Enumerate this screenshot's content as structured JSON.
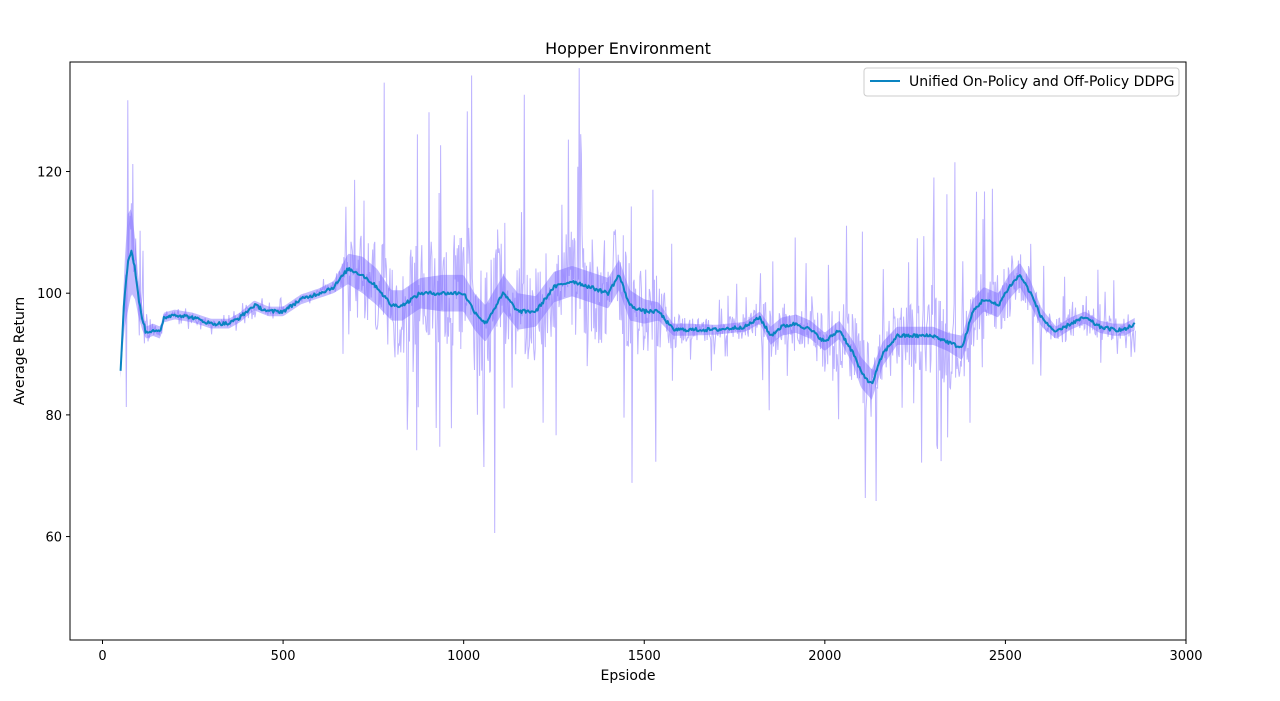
{
  "chart_data": {
    "type": "line",
    "title": "Hopper Environment",
    "xlabel": "Epsiode",
    "ylabel": "Average Return",
    "xlim": [
      -90,
      3000
    ],
    "ylim": [
      43,
      138
    ],
    "x_ticks": [
      0,
      500,
      1000,
      1500,
      2000,
      2500,
      3000
    ],
    "y_ticks": [
      60,
      80,
      100,
      120
    ],
    "grid": false,
    "legend_position": "upper right",
    "raw_color": "#7b68ff",
    "smoothed_color": "#0a84c1",
    "series": [
      {
        "name": "Unified On-Policy and Off-Policy DDPG",
        "x": [
          50,
          60,
          70,
          80,
          90,
          100,
          110,
          120,
          140,
          160,
          170,
          200,
          250,
          300,
          350,
          380,
          420,
          460,
          500,
          550,
          600,
          640,
          680,
          720,
          760,
          800,
          830,
          880,
          940,
          1000,
          1030,
          1060,
          1090,
          1110,
          1150,
          1200,
          1250,
          1300,
          1350,
          1400,
          1430,
          1460,
          1500,
          1540,
          1580,
          1620,
          1700,
          1780,
          1820,
          1850,
          1880,
          1920,
          1960,
          2000,
          2040,
          2080,
          2100,
          2130,
          2160,
          2200,
          2250,
          2300,
          2340,
          2380,
          2410,
          2440,
          2480,
          2510,
          2540,
          2570,
          2600,
          2640,
          2680,
          2720,
          2760,
          2800,
          2830,
          2860
        ],
        "smoothed": [
          87,
          99,
          105,
          107,
          104,
          99,
          96,
          93.5,
          94,
          93.5,
          96,
          96.5,
          96,
          95,
          95,
          96,
          98,
          97,
          97,
          99,
          100,
          101,
          104,
          103,
          101,
          98,
          98,
          100,
          100,
          100,
          97,
          95,
          98,
          100,
          97,
          97,
          101,
          102,
          101,
          100,
          103,
          98,
          97,
          97,
          94,
          94,
          94,
          94.5,
          96,
          93,
          94.5,
          95,
          94,
          92,
          94,
          90,
          87,
          85,
          90,
          93,
          93,
          93,
          92,
          91,
          97,
          99,
          98,
          101,
          103,
          100,
          96,
          93.5,
          95,
          96,
          94.5,
          94,
          94,
          95
        ],
        "envelope_halfwidth": [
          1,
          5,
          8,
          7,
          5,
          3,
          2,
          1,
          1,
          1,
          0.8,
          0.8,
          0.8,
          0.8,
          0.8,
          0.8,
          0.8,
          0.8,
          0.8,
          0.8,
          0.8,
          1,
          2.5,
          3,
          3,
          2.5,
          2.5,
          2.5,
          3,
          3,
          3,
          3,
          3,
          3,
          3,
          2.5,
          2.5,
          2.5,
          2.5,
          2.5,
          2.5,
          2.5,
          2,
          1.5,
          1,
          1,
          0.8,
          0.8,
          1,
          1.5,
          1.5,
          1.5,
          1.5,
          1.5,
          1.5,
          2,
          2.5,
          2.5,
          2,
          1.5,
          1.5,
          1.5,
          1.5,
          2,
          2,
          2,
          2,
          2,
          2,
          2,
          1.5,
          1,
          1,
          1,
          1,
          1,
          1,
          1
        ],
        "raw_variance": [
          2,
          10,
          14,
          12,
          10,
          7,
          5,
          6,
          2,
          1.5,
          1,
          1,
          1,
          1,
          1,
          1,
          1,
          1,
          1,
          1,
          1,
          2,
          8,
          12,
          16,
          16,
          15,
          15,
          17,
          18,
          19,
          18,
          17,
          16,
          15,
          14,
          15,
          16,
          16,
          16,
          16,
          15,
          13,
          11,
          6,
          4,
          3,
          4,
          6,
          8,
          6,
          6,
          7,
          9,
          11,
          13,
          13,
          11,
          10,
          10,
          10,
          12,
          14,
          13,
          11,
          9,
          9,
          9,
          8,
          7,
          5,
          4,
          5,
          5,
          4,
          4,
          4,
          3
        ]
      }
    ]
  }
}
